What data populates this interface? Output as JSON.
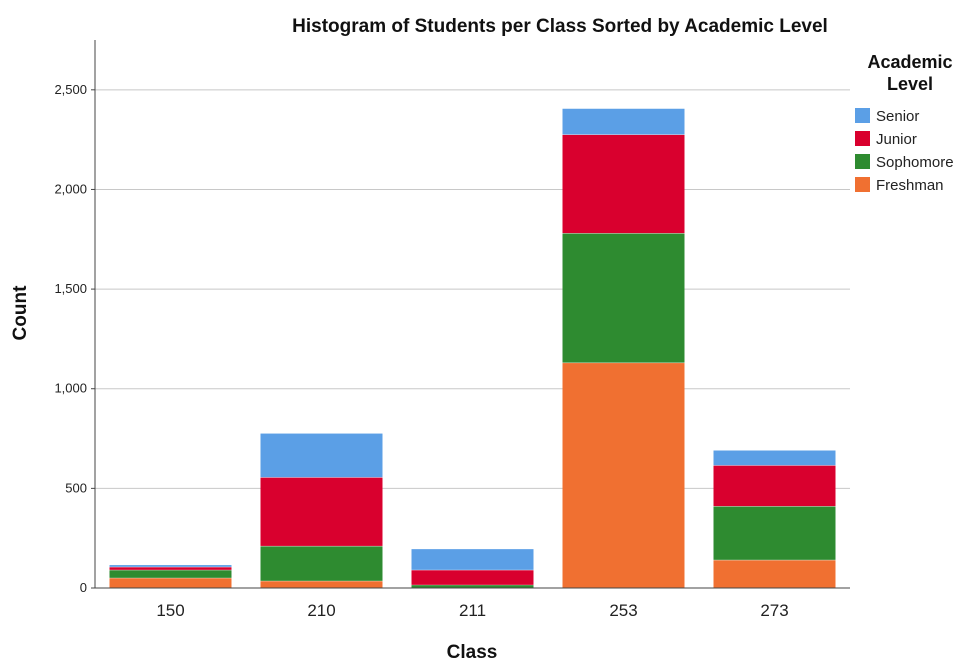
{
  "chart_data": {
    "type": "bar",
    "stacked": true,
    "title": "Histogram of Students per Class Sorted by Academic Level",
    "xlabel": "Class",
    "ylabel": "Count",
    "categories": [
      "150",
      "210",
      "211",
      "253",
      "273"
    ],
    "ylim": [
      0,
      2750
    ],
    "yticks": [
      0,
      500,
      1000,
      1500,
      2000,
      2500
    ],
    "ytick_labels": [
      "0",
      "500",
      "1,000",
      "1,500",
      "2,000",
      "2,500"
    ],
    "grid": true,
    "legend": {
      "title_lines": [
        "Academic",
        "Level"
      ],
      "placement": "top-right",
      "order": [
        "Senior",
        "Junior",
        "Sophomore",
        "Freshman"
      ]
    },
    "series": [
      {
        "name": "Freshman",
        "color": "#f07031",
        "values": [
          50,
          35,
          0,
          1130,
          140
        ]
      },
      {
        "name": "Sophomore",
        "color": "#2e8b30",
        "values": [
          40,
          175,
          15,
          650,
          270
        ]
      },
      {
        "name": "Junior",
        "color": "#d9002e",
        "values": [
          15,
          345,
          75,
          495,
          205
        ]
      },
      {
        "name": "Senior",
        "color": "#5b9fe6",
        "values": [
          10,
          220,
          105,
          130,
          75
        ]
      }
    ]
  }
}
